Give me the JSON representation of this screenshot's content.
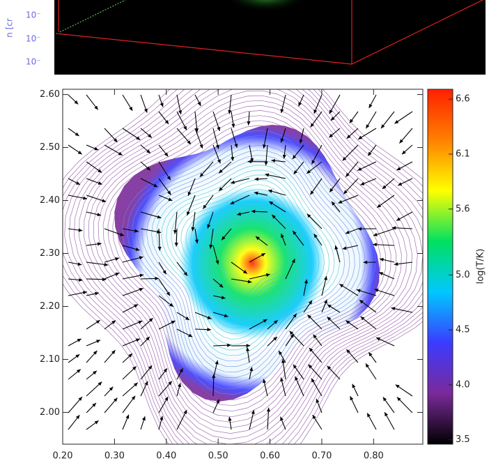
{
  "top_panel": {
    "ylabel": "n [cr",
    "tick_labels": [
      "10⁻",
      "10⁻",
      "10⁻"
    ]
  },
  "chart_data": {
    "type": "contour",
    "xlim": [
      0.2,
      0.895
    ],
    "ylim": [
      1.94,
      2.61
    ],
    "xticks": [
      {
        "value": 0.2,
        "label": "0.20"
      },
      {
        "value": 0.3,
        "label": "0.30"
      },
      {
        "value": 0.4,
        "label": "0.40"
      },
      {
        "value": 0.5,
        "label": "0.50"
      },
      {
        "value": 0.6,
        "label": "0.60"
      },
      {
        "value": 0.7,
        "label": "0.70"
      },
      {
        "value": 0.8,
        "label": "0.80"
      }
    ],
    "yticks": [
      {
        "value": 2.0,
        "label": "2.00"
      },
      {
        "value": 2.1,
        "label": "2.10"
      },
      {
        "value": 2.2,
        "label": "2.20"
      },
      {
        "value": 2.3,
        "label": "2.30"
      },
      {
        "value": 2.4,
        "label": "2.40"
      },
      {
        "value": 2.5,
        "label": "2.50"
      },
      {
        "value": 2.6,
        "label": "2.60"
      }
    ],
    "colorbar": {
      "label": "log(T/K)",
      "lim": [
        3.46,
        6.69
      ],
      "ticks": [
        3.5,
        {
          "value": 4,
          "label": "4.0"
        },
        4.5,
        {
          "value": 5,
          "label": "5.0"
        },
        5.6,
        6.1,
        6.6
      ],
      "colormap": [
        "#000000",
        "#7a2a9a",
        "#3b3bff",
        "#00c8ff",
        "#00e060",
        "#ffff00",
        "#ff8000",
        "#ff2000"
      ]
    }
  }
}
